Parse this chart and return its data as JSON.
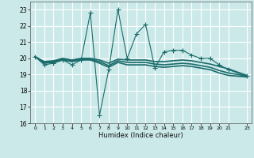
{
  "title": "",
  "xlabel": "Humidex (Indice chaleur)",
  "ylabel": "",
  "bg_color": "#cce9e9",
  "grid_color": "#ffffff",
  "line_color": "#1a6b6b",
  "xlim": [
    -0.5,
    23.5
  ],
  "ylim": [
    16,
    23.5
  ],
  "xticks": [
    0,
    1,
    2,
    3,
    4,
    5,
    6,
    7,
    8,
    9,
    10,
    11,
    12,
    13,
    14,
    15,
    16,
    17,
    18,
    19,
    20,
    21,
    23
  ],
  "yticks": [
    16,
    17,
    18,
    19,
    20,
    21,
    22,
    23
  ],
  "series": [
    {
      "x": [
        0,
        1,
        2,
        3,
        4,
        5,
        6,
        7,
        8,
        9,
        10,
        11,
        12,
        13,
        14,
        15,
        16,
        17,
        18,
        19,
        20,
        21,
        23
      ],
      "y": [
        20.1,
        19.6,
        19.7,
        19.9,
        19.6,
        19.9,
        22.8,
        16.5,
        19.3,
        23.0,
        20.0,
        21.5,
        22.1,
        19.4,
        20.4,
        20.5,
        20.5,
        20.2,
        20.0,
        20.0,
        19.6,
        19.3,
        18.9
      ],
      "marker": "+",
      "markersize": 4,
      "linewidth": 0.8,
      "zorder": 3
    },
    {
      "x": [
        0,
        1,
        2,
        3,
        4,
        5,
        6,
        7,
        8,
        9,
        10,
        11,
        12,
        13,
        14,
        15,
        16,
        17,
        18,
        19,
        20,
        21,
        23
      ],
      "y": [
        20.1,
        19.8,
        19.85,
        20.0,
        19.9,
        20.0,
        20.0,
        19.9,
        19.7,
        19.95,
        19.9,
        19.9,
        19.9,
        19.8,
        19.8,
        19.85,
        19.9,
        19.85,
        19.75,
        19.65,
        19.5,
        19.35,
        18.95
      ],
      "marker": null,
      "markersize": 0,
      "linewidth": 1.2,
      "zorder": 2
    },
    {
      "x": [
        0,
        1,
        2,
        3,
        4,
        5,
        6,
        7,
        8,
        9,
        10,
        11,
        12,
        13,
        14,
        15,
        16,
        17,
        18,
        19,
        20,
        21,
        23
      ],
      "y": [
        20.1,
        19.75,
        19.8,
        19.95,
        19.85,
        19.95,
        19.95,
        19.8,
        19.55,
        19.85,
        19.75,
        19.75,
        19.75,
        19.65,
        19.6,
        19.65,
        19.7,
        19.65,
        19.55,
        19.45,
        19.25,
        19.1,
        18.9
      ],
      "marker": null,
      "markersize": 0,
      "linewidth": 1.2,
      "zorder": 2
    },
    {
      "x": [
        0,
        1,
        2,
        3,
        4,
        5,
        6,
        7,
        8,
        9,
        10,
        11,
        12,
        13,
        14,
        15,
        16,
        17,
        18,
        19,
        20,
        21,
        23
      ],
      "y": [
        20.1,
        19.7,
        19.75,
        19.9,
        19.8,
        19.9,
        19.9,
        19.7,
        19.45,
        19.75,
        19.6,
        19.6,
        19.6,
        19.5,
        19.45,
        19.5,
        19.55,
        19.5,
        19.4,
        19.3,
        19.1,
        18.95,
        18.85
      ],
      "marker": null,
      "markersize": 0,
      "linewidth": 1.2,
      "zorder": 2
    }
  ]
}
